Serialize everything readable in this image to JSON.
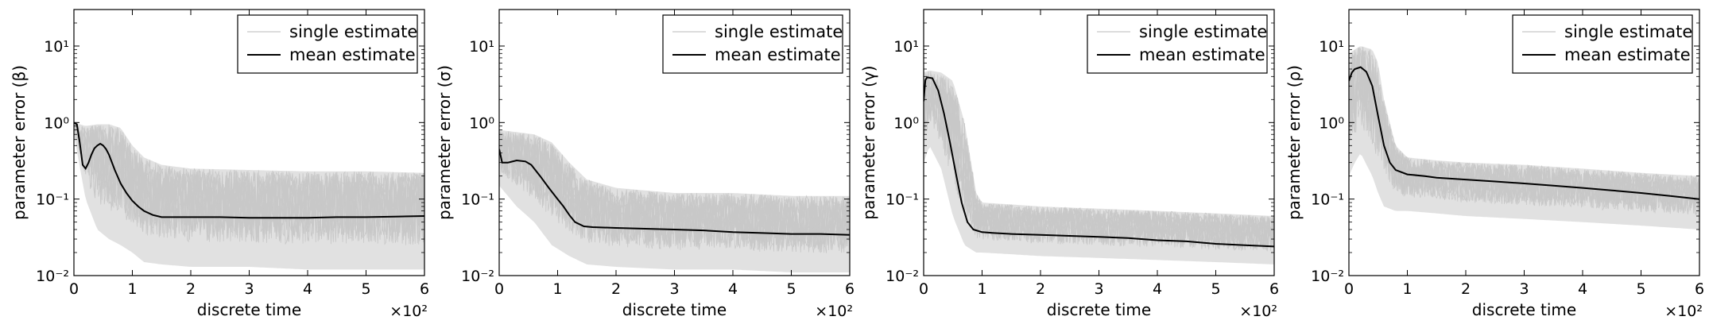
{
  "chart_data": [
    {
      "type": "line",
      "xlabel": "discrete time",
      "ylabel": "parameter error (β)",
      "x_scale_note": "×10²",
      "xlim": [
        0,
        6
      ],
      "ylim": [
        0.01,
        30
      ],
      "yscale": "log",
      "xticks": [
        "0",
        "1",
        "2",
        "3",
        "4",
        "5",
        "6"
      ],
      "yticks": [
        "10⁻²",
        "10⁻¹",
        "10⁰",
        "10¹"
      ],
      "legend_position": "top-right",
      "series": [
        {
          "name": "single estimate",
          "color": "#c8c8c8",
          "kind": "band",
          "x": [
            0,
            0.2,
            0.4,
            0.6,
            0.8,
            1.0,
            1.2,
            1.5,
            2,
            3,
            4,
            5,
            6
          ],
          "lower": [
            0.7,
            0.1,
            0.04,
            0.03,
            0.025,
            0.02,
            0.015,
            0.014,
            0.013,
            0.013,
            0.012,
            0.012,
            0.012
          ],
          "upper": [
            1.0,
            0.9,
            0.95,
            0.95,
            0.85,
            0.5,
            0.35,
            0.28,
            0.25,
            0.24,
            0.23,
            0.23,
            0.22
          ]
        },
        {
          "name": "mean estimate",
          "color": "#000000",
          "x": [
            0,
            0.05,
            0.1,
            0.15,
            0.2,
            0.25,
            0.3,
            0.35,
            0.4,
            0.45,
            0.5,
            0.55,
            0.6,
            0.7,
            0.8,
            0.9,
            1.0,
            1.1,
            1.2,
            1.35,
            1.5,
            2,
            2.5,
            3,
            3.5,
            4,
            4.5,
            5,
            5.5,
            6
          ],
          "values": [
            1.0,
            0.95,
            0.55,
            0.28,
            0.25,
            0.3,
            0.38,
            0.46,
            0.5,
            0.53,
            0.5,
            0.45,
            0.38,
            0.24,
            0.16,
            0.12,
            0.095,
            0.08,
            0.07,
            0.062,
            0.058,
            0.058,
            0.058,
            0.057,
            0.057,
            0.057,
            0.058,
            0.058,
            0.059,
            0.06
          ]
        }
      ]
    },
    {
      "type": "line",
      "xlabel": "discrete time",
      "ylabel": "parameter error (σ)",
      "x_scale_note": "×10²",
      "xlim": [
        0,
        6
      ],
      "ylim": [
        0.01,
        30
      ],
      "yscale": "log",
      "xticks": [
        "0",
        "1",
        "2",
        "3",
        "4",
        "5",
        "6"
      ],
      "yticks": [
        "10⁻²",
        "10⁻¹",
        "10⁰",
        "10¹"
      ],
      "legend_position": "top-right",
      "series": [
        {
          "name": "single estimate",
          "color": "#c8c8c8",
          "kind": "band",
          "x": [
            0,
            0.3,
            0.6,
            0.9,
            1.2,
            1.5,
            2,
            3,
            4,
            5,
            6
          ],
          "lower": [
            0.15,
            0.08,
            0.05,
            0.025,
            0.018,
            0.014,
            0.013,
            0.012,
            0.012,
            0.011,
            0.011
          ],
          "upper": [
            0.8,
            0.75,
            0.7,
            0.55,
            0.3,
            0.18,
            0.14,
            0.12,
            0.12,
            0.11,
            0.11
          ]
        },
        {
          "name": "mean estimate",
          "color": "#000000",
          "x": [
            0,
            0.05,
            0.15,
            0.3,
            0.45,
            0.55,
            0.7,
            0.85,
            1.0,
            1.1,
            1.2,
            1.3,
            1.45,
            1.6,
            2,
            2.5,
            3,
            3.5,
            4,
            4.5,
            5,
            5.5,
            6
          ],
          "values": [
            0.45,
            0.3,
            0.3,
            0.32,
            0.31,
            0.28,
            0.2,
            0.14,
            0.1,
            0.08,
            0.062,
            0.05,
            0.044,
            0.043,
            0.042,
            0.041,
            0.04,
            0.039,
            0.037,
            0.036,
            0.035,
            0.035,
            0.034
          ]
        }
      ]
    },
    {
      "type": "line",
      "xlabel": "discrete time",
      "ylabel": "parameter error (γ)",
      "x_scale_note": "×10²",
      "xlim": [
        0,
        6
      ],
      "ylim": [
        0.01,
        30
      ],
      "yscale": "log",
      "xticks": [
        "0",
        "1",
        "2",
        "3",
        "4",
        "5",
        "6"
      ],
      "yticks": [
        "10⁻²",
        "10⁻¹",
        "10⁰",
        "10¹"
      ],
      "legend_position": "top-right",
      "series": [
        {
          "name": "single estimate",
          "color": "#c8c8c8",
          "kind": "band",
          "x": [
            0,
            0.1,
            0.3,
            0.5,
            0.7,
            0.9,
            1.0,
            1.5,
            2,
            3,
            4,
            5,
            6
          ],
          "lower": [
            0.3,
            0.5,
            0.25,
            0.06,
            0.025,
            0.02,
            0.02,
            0.019,
            0.018,
            0.017,
            0.016,
            0.015,
            0.014
          ],
          "upper": [
            4.5,
            4.8,
            4.5,
            3.5,
            1.0,
            0.12,
            0.09,
            0.085,
            0.08,
            0.075,
            0.07,
            0.065,
            0.06
          ]
        },
        {
          "name": "mean estimate",
          "color": "#000000",
          "x": [
            0,
            0.03,
            0.06,
            0.15,
            0.25,
            0.35,
            0.45,
            0.55,
            0.65,
            0.75,
            0.85,
            1.0,
            1.2,
            1.5,
            2,
            2.5,
            3,
            3.5,
            4,
            4.5,
            5,
            5.5,
            6
          ],
          "values": [
            1.9,
            3.6,
            3.9,
            3.8,
            2.6,
            1.3,
            0.55,
            0.22,
            0.09,
            0.05,
            0.04,
            0.037,
            0.036,
            0.035,
            0.034,
            0.033,
            0.032,
            0.031,
            0.029,
            0.028,
            0.026,
            0.025,
            0.024
          ]
        }
      ]
    },
    {
      "type": "line",
      "xlabel": "discrete time",
      "ylabel": "parameter error (ρ)",
      "x_scale_note": "×10²",
      "xlim": [
        0,
        6
      ],
      "ylim": [
        0.01,
        30
      ],
      "yscale": "log",
      "xticks": [
        "0",
        "1",
        "2",
        "3",
        "4",
        "5",
        "6"
      ],
      "yticks": [
        "10⁻²",
        "10⁻¹",
        "10⁰",
        "10¹"
      ],
      "legend_position": "top-right",
      "series": [
        {
          "name": "single estimate",
          "color": "#c8c8c8",
          "kind": "band",
          "x": [
            0,
            0.1,
            0.2,
            0.4,
            0.5,
            0.6,
            0.8,
            1.0,
            1.5,
            2,
            3,
            4,
            5,
            6
          ],
          "lower": [
            0.2,
            0.3,
            0.4,
            0.2,
            0.12,
            0.08,
            0.07,
            0.07,
            0.065,
            0.06,
            0.055,
            0.05,
            0.045,
            0.04
          ],
          "upper": [
            8,
            9,
            10,
            9,
            6,
            2,
            0.5,
            0.35,
            0.32,
            0.3,
            0.28,
            0.25,
            0.22,
            0.2
          ]
        },
        {
          "name": "mean estimate",
          "color": "#000000",
          "x": [
            0,
            0.05,
            0.1,
            0.2,
            0.3,
            0.4,
            0.5,
            0.6,
            0.7,
            0.8,
            1.0,
            1.3,
            1.5,
            2,
            2.5,
            3,
            3.5,
            4,
            4.5,
            5,
            5.5,
            6
          ],
          "values": [
            3.5,
            4.5,
            5.0,
            5.3,
            4.6,
            3.0,
            1.2,
            0.5,
            0.3,
            0.24,
            0.21,
            0.2,
            0.19,
            0.18,
            0.17,
            0.16,
            0.15,
            0.14,
            0.13,
            0.12,
            0.11,
            0.1
          ]
        }
      ]
    }
  ]
}
